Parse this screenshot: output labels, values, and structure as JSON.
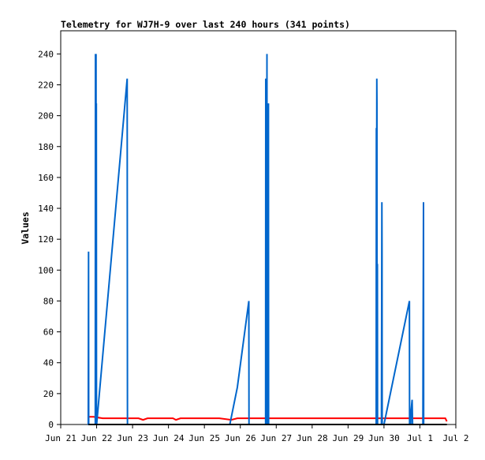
{
  "chart_data": {
    "type": "line",
    "title": "Telemetry for WJ7H-9 over last 240 hours (341 points)",
    "xlabel": "",
    "ylabel": "Values",
    "ylim": [
      0,
      255
    ],
    "xlim": [
      "2023-06-21",
      "2023-07-02"
    ],
    "x_tick_labels": [
      "Jun 21",
      "Jun 22",
      "Jun 23",
      "Jun 24",
      "Jun 25",
      "Jun 26",
      "Jun 27",
      "Jun 28",
      "Jun 29",
      "Jun 30",
      "Jul 1",
      "Jul 2"
    ],
    "y_ticks": [
      0,
      20,
      40,
      60,
      80,
      100,
      120,
      140,
      160,
      180,
      200,
      220,
      240
    ],
    "grid": false,
    "legend": "none",
    "series": [
      {
        "color": "#ff0000",
        "points": [
          [
            "2023-06-21T18:24",
            5
          ],
          [
            "2023-06-21T22:00",
            5
          ],
          [
            "2023-06-22T04:00",
            4
          ],
          [
            "2023-06-22T12:00",
            4
          ],
          [
            "2023-06-22T20:00",
            4
          ],
          [
            "2023-06-23T04:00",
            4
          ],
          [
            "2023-06-23T07:00",
            3
          ],
          [
            "2023-06-23T10:00",
            4
          ],
          [
            "2023-06-23T20:00",
            4
          ],
          [
            "2023-06-24T03:00",
            4
          ],
          [
            "2023-06-24T05:00",
            3
          ],
          [
            "2023-06-24T08:00",
            4
          ],
          [
            "2023-06-24T18:00",
            4
          ],
          [
            "2023-06-25T06:00",
            4
          ],
          [
            "2023-06-25T10:00",
            4
          ],
          [
            "2023-06-25T18:00",
            3
          ],
          [
            "2023-06-25T22:00",
            4
          ],
          [
            "2023-06-26T08:00",
            4
          ],
          [
            "2023-06-26T18:00",
            4
          ],
          [
            "2023-06-27T00:00",
            4
          ],
          [
            "2023-06-27T12:00",
            4
          ],
          [
            "2023-06-28T00:00",
            4
          ],
          [
            "2023-06-28T12:00",
            4
          ],
          [
            "2023-06-29T00:00",
            4
          ],
          [
            "2023-06-29T12:00",
            4
          ],
          [
            "2023-06-30T00:00",
            4
          ],
          [
            "2023-06-30T12:00",
            4
          ],
          [
            "2023-07-01T00:00",
            4
          ],
          [
            "2023-07-01T12:00",
            4
          ],
          [
            "2023-07-01T17:00",
            4
          ],
          [
            "2023-07-01T18:00",
            2
          ]
        ]
      },
      {
        "color": "#0066cc",
        "points": [
          [
            "2023-06-21T18:24",
            0
          ],
          [
            "2023-06-21T18:30",
            56
          ],
          [
            "2023-06-21T18:36",
            112
          ],
          [
            "2023-06-21T18:42",
            0
          ],
          [
            "2023-06-21T23:06",
            0
          ],
          [
            "2023-06-21T23:12",
            240
          ],
          [
            "2023-06-21T23:18",
            0
          ],
          [
            "2023-06-21T23:24",
            240
          ],
          [
            "2023-06-21T23:30",
            120
          ],
          [
            "2023-06-21T23:36",
            240
          ],
          [
            "2023-06-21T23:42",
            0
          ],
          [
            "2023-06-21T23:48",
            208
          ],
          [
            "2023-06-21T23:54",
            0
          ],
          [
            "2023-06-22T00:00",
            0
          ],
          [
            "2023-06-22T20:24",
            224
          ],
          [
            "2023-06-22T20:30",
            112
          ],
          [
            "2023-06-22T20:36",
            0
          ],
          [
            "2023-06-25T17:00",
            0
          ],
          [
            "2023-06-25T22:00",
            24
          ],
          [
            "2023-06-26T05:42",
            80
          ],
          [
            "2023-06-26T05:48",
            0
          ],
          [
            "2023-06-26T16:54",
            0
          ],
          [
            "2023-06-26T17:00",
            224
          ],
          [
            "2023-06-26T17:06",
            0
          ],
          [
            "2023-06-26T17:18",
            160
          ],
          [
            "2023-06-26T17:24",
            0
          ],
          [
            "2023-06-26T17:36",
            32
          ],
          [
            "2023-06-26T17:48",
            240
          ],
          [
            "2023-06-26T17:54",
            0
          ],
          [
            "2023-06-26T18:06",
            176
          ],
          [
            "2023-06-26T18:18",
            0
          ],
          [
            "2023-06-26T18:30",
            128
          ],
          [
            "2023-06-26T18:36",
            0
          ],
          [
            "2023-06-26T18:48",
            208
          ],
          [
            "2023-06-26T18:54",
            0
          ],
          [
            "2023-06-29T18:48",
            0
          ],
          [
            "2023-06-29T18:54",
            192
          ],
          [
            "2023-06-29T19:00",
            0
          ],
          [
            "2023-06-29T19:12",
            224
          ],
          [
            "2023-06-29T19:18",
            208
          ],
          [
            "2023-06-29T19:24",
            0
          ],
          [
            "2023-06-29T19:36",
            104
          ],
          [
            "2023-06-29T19:42",
            0
          ],
          [
            "2023-06-29T22:18",
            0
          ],
          [
            "2023-06-29T22:24",
            48
          ],
          [
            "2023-06-29T22:36",
            144
          ],
          [
            "2023-06-29T22:42",
            112
          ],
          [
            "2023-06-29T22:48",
            0
          ],
          [
            "2023-06-30T00:00",
            0
          ],
          [
            "2023-06-30T17:00",
            80
          ],
          [
            "2023-06-30T17:06",
            0
          ],
          [
            "2023-06-30T17:54",
            0
          ],
          [
            "2023-06-30T18:00",
            8
          ],
          [
            "2023-06-30T18:48",
            16
          ],
          [
            "2023-06-30T19:06",
            0
          ],
          [
            "2023-07-01T02:00",
            0
          ],
          [
            "2023-07-01T02:06",
            48
          ],
          [
            "2023-07-01T02:18",
            108
          ],
          [
            "2023-07-01T02:24",
            144
          ],
          [
            "2023-07-01T02:30",
            0
          ]
        ]
      },
      {
        "color": "#000000",
        "points": [
          [
            "2023-06-21T18:24",
            0
          ],
          [
            "2023-07-01T18:00",
            0
          ]
        ]
      }
    ]
  }
}
